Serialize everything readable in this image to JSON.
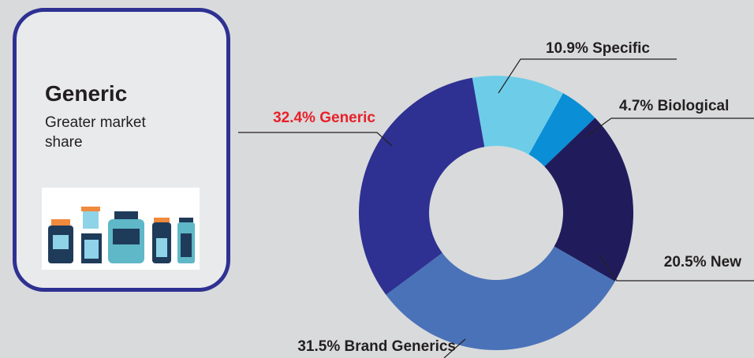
{
  "card": {
    "title": "Generic",
    "text": "Greater market share"
  },
  "chart_data": {
    "type": "donut",
    "values": [
      10.9,
      4.7,
      20.5,
      31.5,
      32.4
    ],
    "value_labels": [
      "10.9% Specific",
      "4.7% Biological",
      "20.5% New",
      "31.5% Brand Generics",
      "32.4% Generic"
    ],
    "colors": [
      "#6dcde8",
      "#0a8fd6",
      "#201c5c",
      "#4a72b8",
      "#2e3192"
    ],
    "label_colors": [
      "#231f20",
      "#231f20",
      "#231f20",
      "#231f20",
      "#e8202a"
    ]
  }
}
